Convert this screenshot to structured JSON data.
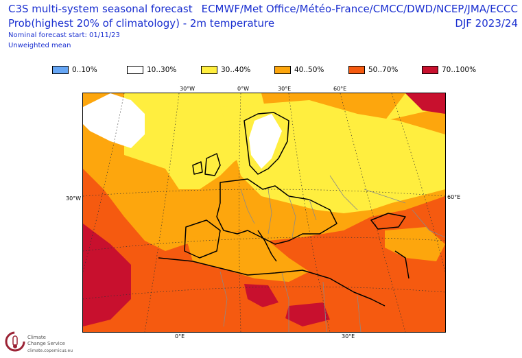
{
  "header": {
    "title": "C3S multi-system seasonal forecast",
    "subtitle": "Prob(highest 20% of climatology) - 2m temperature",
    "forecast_start": "Nominal forecast start: 01/11/23",
    "weighting": "Unweighted mean",
    "centres": "ECMWF/Met Office/Météo-France/CMCC/DWD/NCEP/JMA/ECCC",
    "season": "DJF 2023/24"
  },
  "legend": [
    {
      "label": "0..10%",
      "color": "#66a6f5"
    },
    {
      "label": "10..30%",
      "color": "#ffffff"
    },
    {
      "label": "30..40%",
      "color": "#ffee3f"
    },
    {
      "label": "40..50%",
      "color": "#fda60d"
    },
    {
      "label": "50..70%",
      "color": "#f55a10"
    },
    {
      "label": "70..100%",
      "color": "#c8102e"
    }
  ],
  "gridlabels": {
    "top": [
      "30°W",
      "0°W",
      "30°E",
      "60°E"
    ],
    "left": [
      "30°W"
    ],
    "right": [
      "60°E"
    ],
    "bottom": [
      "0°E",
      "30°E"
    ]
  },
  "logo": {
    "name_line1": "Climate",
    "name_line2": "Change Service",
    "url": "climate.copernicus.eu"
  }
}
